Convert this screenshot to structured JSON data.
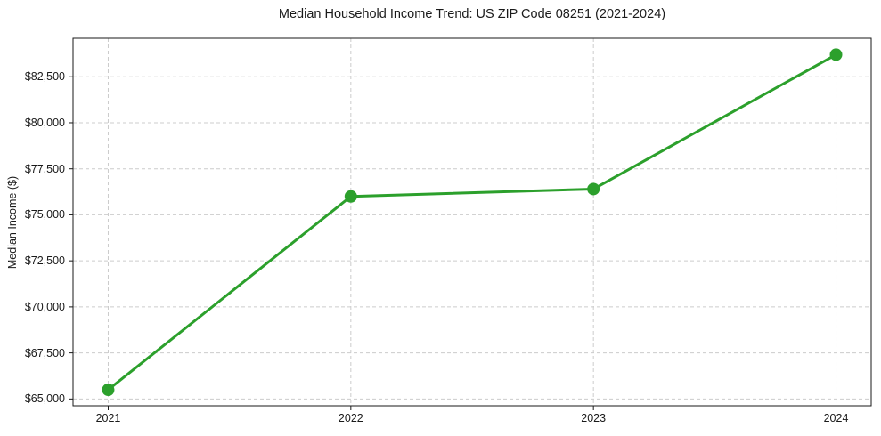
{
  "chart_data": {
    "type": "line",
    "title": "Median Household Income Trend: US ZIP Code 08251 (2021-2024)",
    "xlabel": "",
    "ylabel": "Median Income ($)",
    "x": [
      2021,
      2022,
      2023,
      2024
    ],
    "values": [
      65500,
      76000,
      76400,
      83700
    ],
    "xlim": [
      2020.855,
      2024.145
    ],
    "ylim": [
      64630,
      84590
    ],
    "yticks": [
      {
        "value": 65000,
        "label": "$65,000"
      },
      {
        "value": 67500,
        "label": "$67,500"
      },
      {
        "value": 70000,
        "label": "$70,000"
      },
      {
        "value": 72500,
        "label": "$72,500"
      },
      {
        "value": 75000,
        "label": "$75,000"
      },
      {
        "value": 77500,
        "label": "$77,500"
      },
      {
        "value": 80000,
        "label": "$80,000"
      },
      {
        "value": 82500,
        "label": "$82,500"
      }
    ],
    "xticks": [
      {
        "value": 2021,
        "label": "2021"
      },
      {
        "value": 2022,
        "label": "2022"
      },
      {
        "value": 2023,
        "label": "2023"
      },
      {
        "value": 2024,
        "label": "2024"
      }
    ],
    "grid": {
      "visible": true,
      "style": "dashed",
      "color": "#cccccc"
    },
    "legend_position": "none",
    "colors": {
      "line": "#2ca02c",
      "marker": "#2ca02c",
      "spine": "#1a1a1a",
      "text": "#1a1a1a",
      "background": "#ffffff"
    },
    "marker": {
      "shape": "circle",
      "size": 7
    },
    "line_width": 3
  }
}
